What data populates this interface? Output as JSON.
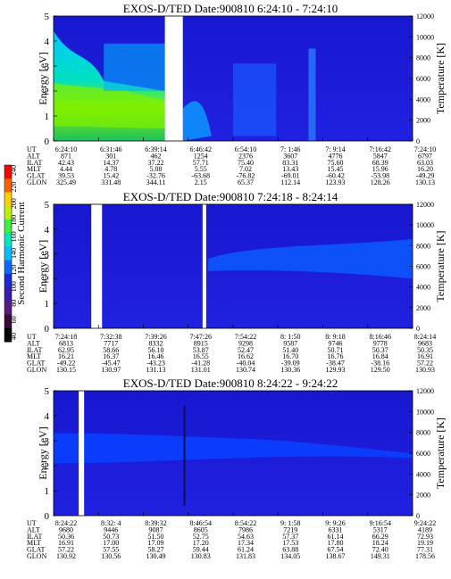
{
  "colorbar": {
    "label": "Second Harmonic Current",
    "ticks": [
      "40",
      "60",
      "80",
      "100",
      "120",
      "140",
      "160",
      "180",
      "200",
      "220",
      "240"
    ],
    "colors": [
      "#000000",
      "#3a0a3a",
      "#5a1a80",
      "#3a1ab0",
      "#1a2ad8",
      "#0a6aff",
      "#00c0ff",
      "#00e8c0",
      "#40f040",
      "#c0f000",
      "#ffd000",
      "#ff6000",
      "#ff0000"
    ]
  },
  "chart_data": [
    {
      "type": "heatmap",
      "title": "EXOS-D/TED",
      "date_label": "Date:900810",
      "time_range": "6:24:10 - 7:24:10",
      "ylabel": "Energy [eV]",
      "ylabel_right": "Temperature [K]",
      "ylim": [
        0,
        5
      ],
      "yticks": [
        "0",
        "1",
        "2",
        "3",
        "4",
        "5"
      ],
      "ylim_right": [
        0,
        12000
      ],
      "yticks_right": [
        "0",
        "2000",
        "4000",
        "6000",
        "8000",
        "10000",
        "12000"
      ],
      "row_labels": [
        "UT",
        "ALT",
        "ILAT",
        "MLT",
        "GLAT",
        "GLON"
      ],
      "columns": [
        [
          "6:24:10",
          "871",
          "42.43",
          "4.44",
          "39.53",
          "325.49"
        ],
        [
          "6:31:46",
          "301",
          "14.37",
          "4.78",
          "15.42",
          "331.48"
        ],
        [
          "6:39:14",
          "462",
          "37.22",
          "5.08",
          "-32.76",
          "344.11"
        ],
        [
          "6:46:42",
          "1254",
          "57.71",
          "5.55",
          "-63.68",
          "2.15"
        ],
        [
          "6:54:10",
          "2376",
          "75.40",
          "7.02",
          "-76.82",
          "65.37"
        ],
        [
          "7: 1:46",
          "3607",
          "83.31",
          "13.43",
          "-69.01",
          "112.14"
        ],
        [
          "7: 9:14",
          "4776",
          "75.60",
          "15.45",
          "-60.42",
          "123.93"
        ],
        [
          "7:16:42",
          "5847",
          "68.39",
          "15.96",
          "-53.98",
          "128.26"
        ],
        [
          "7:24:10",
          "6797",
          "63.03",
          "16.20",
          "-49.29",
          "130.13"
        ]
      ],
      "data_gaps": [
        [
          0.31,
          0.36
        ]
      ]
    },
    {
      "type": "heatmap",
      "title": "EXOS-D/TED",
      "date_label": "Date:900810",
      "time_range": "7:24:18 - 8:24:14",
      "ylabel": "Energy [eV]",
      "ylabel_right": "Temperature [K]",
      "ylim": [
        0,
        5
      ],
      "yticks": [
        "0",
        "1",
        "2",
        "3",
        "4",
        "5"
      ],
      "ylim_right": [
        0,
        12000
      ],
      "yticks_right": [
        "0",
        "2000",
        "4000",
        "6000",
        "8000",
        "10000",
        "12000"
      ],
      "row_labels": [
        "UT",
        "ALT",
        "ILAT",
        "MLT",
        "GLAT",
        "GLON"
      ],
      "columns": [
        [
          "7:24:18",
          "6813",
          "62.95",
          "16.21",
          "-49.22",
          "130.15"
        ],
        [
          "7:32:38",
          "7717",
          "58.66",
          "16.37",
          "-45.47",
          "130.97"
        ],
        [
          "7:39:26",
          "8332",
          "56.10",
          "16.46",
          "-43.23",
          "131.13"
        ],
        [
          "7:47:26",
          "8915",
          "53.87",
          "16.55",
          "-41.28",
          "131.01"
        ],
        [
          "7:54:22",
          "9298",
          "52.47",
          "16.62",
          "-40.04",
          "130.74"
        ],
        [
          "8: 1:50",
          "9587",
          "51.40",
          "16.70",
          "-39.09",
          "130.36"
        ],
        [
          "8: 9:18",
          "9746",
          "50.71",
          "16.76",
          "-38.47",
          "129.93"
        ],
        [
          "8:16:46",
          "9778",
          "50.37",
          "16.84",
          "-38.16",
          "129.50"
        ],
        [
          "8:24:14",
          "9683",
          "50.35",
          "16.91",
          "57.22",
          "130.93"
        ]
      ],
      "data_gaps": [
        [
          0.105,
          0.135
        ],
        [
          0.415,
          0.425
        ]
      ]
    },
    {
      "type": "heatmap",
      "title": "EXOS-D/TED",
      "date_label": "Date:900810",
      "time_range": "8:24:22 - 9:24:22",
      "ylabel": "Energy [eV]",
      "ylabel_right": "Temperature [K]",
      "ylim": [
        0,
        5
      ],
      "yticks": [
        "0",
        "1",
        "2",
        "3",
        "4",
        "5"
      ],
      "ylim_right": [
        0,
        12000
      ],
      "yticks_right": [
        "0",
        "2000",
        "4000",
        "6000",
        "8000",
        "10000",
        "12000"
      ],
      "row_labels": [
        "UT",
        "ALT",
        "ILAT",
        "MLT",
        "GLAT",
        "GLON"
      ],
      "columns": [
        [
          "8:24:22",
          "9680",
          "50.36",
          "16.91",
          "57.22",
          "130.92"
        ],
        [
          "8:32: 4",
          "9446",
          "50.73",
          "17.00",
          "57.55",
          "130.56"
        ],
        [
          "8:39:32",
          "9087",
          "51.50",
          "17.09",
          "58.27",
          "130.49"
        ],
        [
          "8:46:54",
          "8605",
          "52.75",
          "17.20",
          "59.44",
          "130.83"
        ],
        [
          "8:54:22",
          "7986",
          "54.63",
          "17.34",
          "61.24",
          "131.83"
        ],
        [
          "9: 1:58",
          "7219",
          "57.37",
          "17.53",
          "63.88",
          "134.05"
        ],
        [
          "9: 9:26",
          "6331",
          "61.14",
          "17.80",
          "67.54",
          "138.67"
        ],
        [
          "9:16:54",
          "5317",
          "66.29",
          "18.24",
          "72.40",
          "149.31"
        ],
        [
          "9:24:22",
          "4189",
          "72.93",
          "19.19",
          "77.31",
          "178.56"
        ]
      ],
      "data_gaps": [
        [
          0.07,
          0.085
        ]
      ]
    }
  ]
}
